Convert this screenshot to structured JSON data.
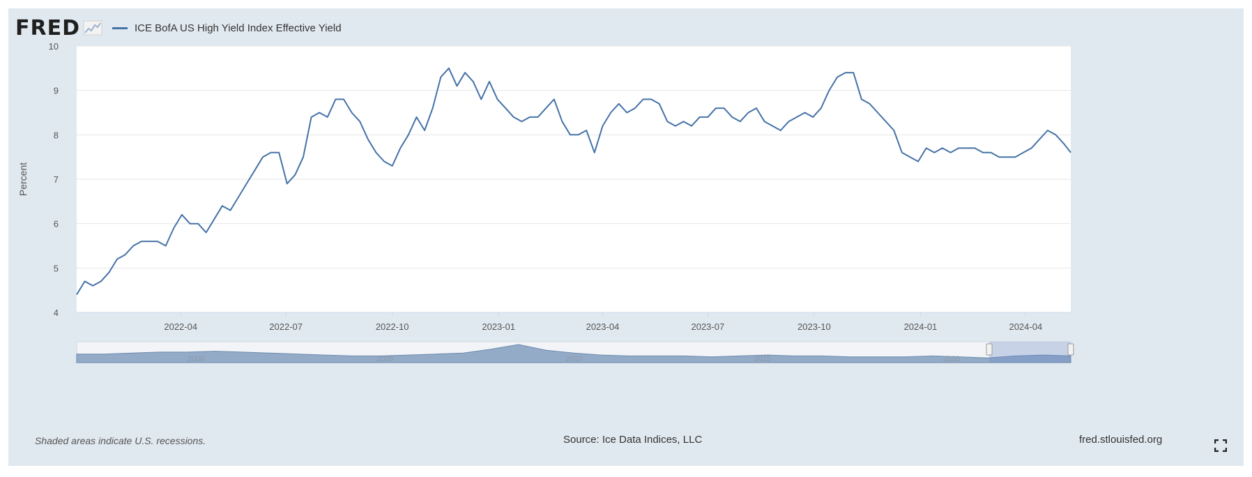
{
  "logo": {
    "text": "FRED"
  },
  "legend": {
    "series_label": "ICE BofA US High Yield Index Effective Yield"
  },
  "footer": {
    "recession_note": "Shaded areas indicate U.S. recessions.",
    "source": "Source: Ice Data Indices, LLC",
    "site": "fred.stlouisfed.org"
  },
  "colors": {
    "line": "#4572a7",
    "background": "#e1e9f0",
    "plot": "#ffffff",
    "navigator_fill": "#8aa4c4"
  },
  "icons": {
    "logo_graph": "line-chart-icon",
    "fullscreen": "fullscreen-icon"
  },
  "chart_data": {
    "type": "line",
    "title": "",
    "xlabel": "",
    "ylabel": "Percent",
    "ylim": [
      4,
      10
    ],
    "yticks": [
      4,
      5,
      6,
      7,
      8,
      9,
      10
    ],
    "xticks": [
      "2022-04",
      "2022-07",
      "2022-10",
      "2023-01",
      "2023-04",
      "2023-07",
      "2023-10",
      "2024-01",
      "2024-04"
    ],
    "xlim": [
      "2022-01-01",
      "2024-05-10"
    ],
    "grid": true,
    "legend": "top-left",
    "series": [
      {
        "name": "ICE BofA US High Yield Index Effective Yield",
        "points": [
          [
            "2022-01-01",
            4.4
          ],
          [
            "2022-01-08",
            4.7
          ],
          [
            "2022-01-15",
            4.6
          ],
          [
            "2022-01-22",
            4.7
          ],
          [
            "2022-01-29",
            4.9
          ],
          [
            "2022-02-05",
            5.2
          ],
          [
            "2022-02-12",
            5.3
          ],
          [
            "2022-02-19",
            5.5
          ],
          [
            "2022-02-26",
            5.6
          ],
          [
            "2022-03-05",
            5.6
          ],
          [
            "2022-03-12",
            5.6
          ],
          [
            "2022-03-19",
            5.5
          ],
          [
            "2022-03-26",
            5.9
          ],
          [
            "2022-04-02",
            6.2
          ],
          [
            "2022-04-09",
            6.0
          ],
          [
            "2022-04-16",
            6.0
          ],
          [
            "2022-04-23",
            5.8
          ],
          [
            "2022-04-30",
            6.1
          ],
          [
            "2022-05-07",
            6.4
          ],
          [
            "2022-05-14",
            6.3
          ],
          [
            "2022-05-21",
            6.6
          ],
          [
            "2022-05-28",
            6.9
          ],
          [
            "2022-06-04",
            7.2
          ],
          [
            "2022-06-11",
            7.5
          ],
          [
            "2022-06-18",
            7.6
          ],
          [
            "2022-06-25",
            7.6
          ],
          [
            "2022-07-02",
            6.9
          ],
          [
            "2022-07-09",
            7.1
          ],
          [
            "2022-07-16",
            7.5
          ],
          [
            "2022-07-23",
            8.4
          ],
          [
            "2022-07-30",
            8.5
          ],
          [
            "2022-08-06",
            8.4
          ],
          [
            "2022-08-13",
            8.8
          ],
          [
            "2022-08-20",
            8.8
          ],
          [
            "2022-08-27",
            8.5
          ],
          [
            "2022-09-03",
            8.3
          ],
          [
            "2022-09-10",
            7.9
          ],
          [
            "2022-09-17",
            7.6
          ],
          [
            "2022-09-24",
            7.4
          ],
          [
            "2022-10-01",
            7.3
          ],
          [
            "2022-10-08",
            7.7
          ],
          [
            "2022-10-15",
            8.0
          ],
          [
            "2022-10-22",
            8.4
          ],
          [
            "2022-10-29",
            8.1
          ],
          [
            "2022-11-05",
            8.6
          ],
          [
            "2022-11-12",
            9.3
          ],
          [
            "2022-11-19",
            9.5
          ],
          [
            "2022-11-26",
            9.1
          ],
          [
            "2022-12-03",
            9.4
          ],
          [
            "2022-12-10",
            9.2
          ],
          [
            "2022-12-17",
            8.8
          ],
          [
            "2022-12-24",
            9.2
          ],
          [
            "2022-12-31",
            8.8
          ],
          [
            "2023-01-07",
            8.6
          ],
          [
            "2023-01-14",
            8.4
          ],
          [
            "2023-01-21",
            8.3
          ],
          [
            "2023-01-28",
            8.4
          ],
          [
            "2023-02-04",
            8.4
          ],
          [
            "2023-02-11",
            8.6
          ],
          [
            "2023-02-18",
            8.8
          ],
          [
            "2023-02-25",
            8.3
          ],
          [
            "2023-03-04",
            8.0
          ],
          [
            "2023-03-11",
            8.0
          ],
          [
            "2023-03-18",
            8.1
          ],
          [
            "2023-03-25",
            7.6
          ],
          [
            "2023-04-01",
            8.2
          ],
          [
            "2023-04-08",
            8.5
          ],
          [
            "2023-04-15",
            8.7
          ],
          [
            "2023-04-22",
            8.5
          ],
          [
            "2023-04-29",
            8.6
          ],
          [
            "2023-05-06",
            8.8
          ],
          [
            "2023-05-13",
            8.8
          ],
          [
            "2023-05-20",
            8.7
          ],
          [
            "2023-05-27",
            8.3
          ],
          [
            "2023-06-03",
            8.2
          ],
          [
            "2023-06-10",
            8.3
          ],
          [
            "2023-06-17",
            8.2
          ],
          [
            "2023-06-24",
            8.4
          ],
          [
            "2023-07-01",
            8.4
          ],
          [
            "2023-07-08",
            8.6
          ],
          [
            "2023-07-15",
            8.6
          ],
          [
            "2023-07-22",
            8.4
          ],
          [
            "2023-07-29",
            8.3
          ],
          [
            "2023-08-05",
            8.5
          ],
          [
            "2023-08-12",
            8.6
          ],
          [
            "2023-08-19",
            8.3
          ],
          [
            "2023-08-26",
            8.2
          ],
          [
            "2023-09-02",
            8.1
          ],
          [
            "2023-09-09",
            8.3
          ],
          [
            "2023-09-16",
            8.4
          ],
          [
            "2023-09-23",
            8.5
          ],
          [
            "2023-09-30",
            8.4
          ],
          [
            "2023-10-07",
            8.6
          ],
          [
            "2023-10-14",
            9.0
          ],
          [
            "2023-10-21",
            9.3
          ],
          [
            "2023-10-28",
            9.4
          ],
          [
            "2023-11-04",
            9.4
          ],
          [
            "2023-11-11",
            8.8
          ],
          [
            "2023-11-18",
            8.7
          ],
          [
            "2023-11-25",
            8.5
          ],
          [
            "2023-12-02",
            8.3
          ],
          [
            "2023-12-09",
            8.1
          ],
          [
            "2023-12-16",
            7.6
          ],
          [
            "2023-12-23",
            7.5
          ],
          [
            "2023-12-30",
            7.4
          ],
          [
            "2024-01-06",
            7.7
          ],
          [
            "2024-01-13",
            7.6
          ],
          [
            "2024-01-20",
            7.7
          ],
          [
            "2024-01-27",
            7.6
          ],
          [
            "2024-02-03",
            7.7
          ],
          [
            "2024-02-10",
            7.7
          ],
          [
            "2024-02-17",
            7.7
          ],
          [
            "2024-02-24",
            7.6
          ],
          [
            "2024-03-02",
            7.6
          ],
          [
            "2024-03-09",
            7.5
          ],
          [
            "2024-03-16",
            7.5
          ],
          [
            "2024-03-23",
            7.5
          ],
          [
            "2024-03-30",
            7.6
          ],
          [
            "2024-04-06",
            7.7
          ],
          [
            "2024-04-13",
            7.9
          ],
          [
            "2024-04-20",
            8.1
          ],
          [
            "2024-04-27",
            8.0
          ],
          [
            "2024-05-04",
            7.8
          ],
          [
            "2024-05-10",
            7.6
          ]
        ]
      }
    ],
    "navigator": {
      "labels": [
        "2000",
        "2005",
        "2010",
        "2015",
        "2020"
      ],
      "values": [
        9,
        9,
        10,
        11,
        11,
        12,
        11,
        10,
        9,
        8,
        7,
        7,
        8,
        9,
        10,
        14,
        19,
        13,
        10,
        8,
        7,
        7,
        7,
        6,
        7,
        8,
        7,
        7,
        6,
        6,
        6,
        7,
        6,
        5,
        7,
        8,
        7
      ]
    }
  }
}
